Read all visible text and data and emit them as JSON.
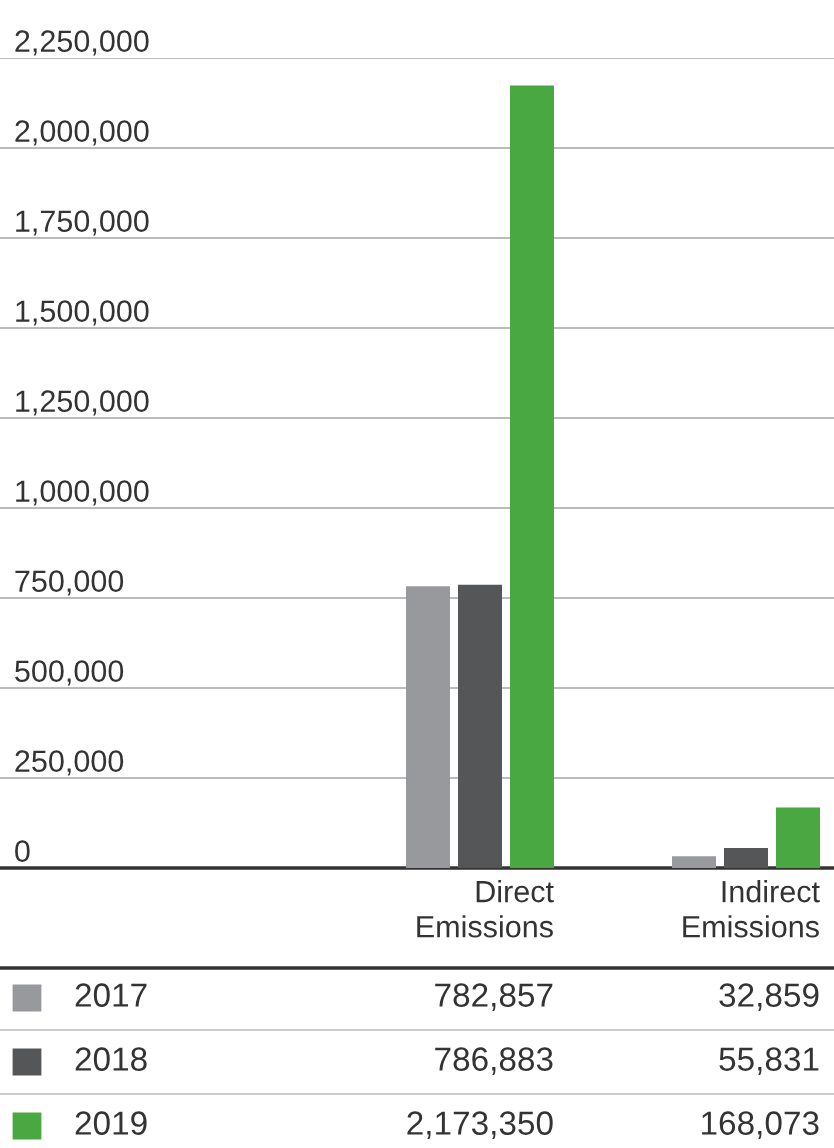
{
  "chart_data": {
    "type": "bar",
    "categories": [
      "Direct\nEmissions",
      "Indirect\nEmissions"
    ],
    "series": [
      {
        "name": "2017",
        "color": "#98999d",
        "values": [
          782857,
          32859
        ],
        "value_labels": [
          "782,857",
          "32,859"
        ]
      },
      {
        "name": "2018",
        "color": "#555658",
        "values": [
          786883,
          55831
        ],
        "value_labels": [
          "786,883",
          "55,831"
        ]
      },
      {
        "name": "2019",
        "color": "#4aa842",
        "values": [
          2173350,
          168073
        ],
        "value_labels": [
          "2,173,350",
          "168,073"
        ]
      }
    ],
    "ylim": [
      0,
      2250000
    ],
    "yticks": [
      {
        "value": 0,
        "label": "0"
      },
      {
        "value": 250000,
        "label": "250,000"
      },
      {
        "value": 500000,
        "label": "500,000"
      },
      {
        "value": 750000,
        "label": "750,000"
      },
      {
        "value": 1000000,
        "label": "1,000,000"
      },
      {
        "value": 1250000,
        "label": "1,250,000"
      },
      {
        "value": 1500000,
        "label": "1,500,000"
      },
      {
        "value": 1750000,
        "label": "1,750,000"
      },
      {
        "value": 2000000,
        "label": "2,000,000"
      },
      {
        "value": 2250000,
        "label": "2,250,000"
      }
    ],
    "grid": "y",
    "legend": "bottom"
  }
}
